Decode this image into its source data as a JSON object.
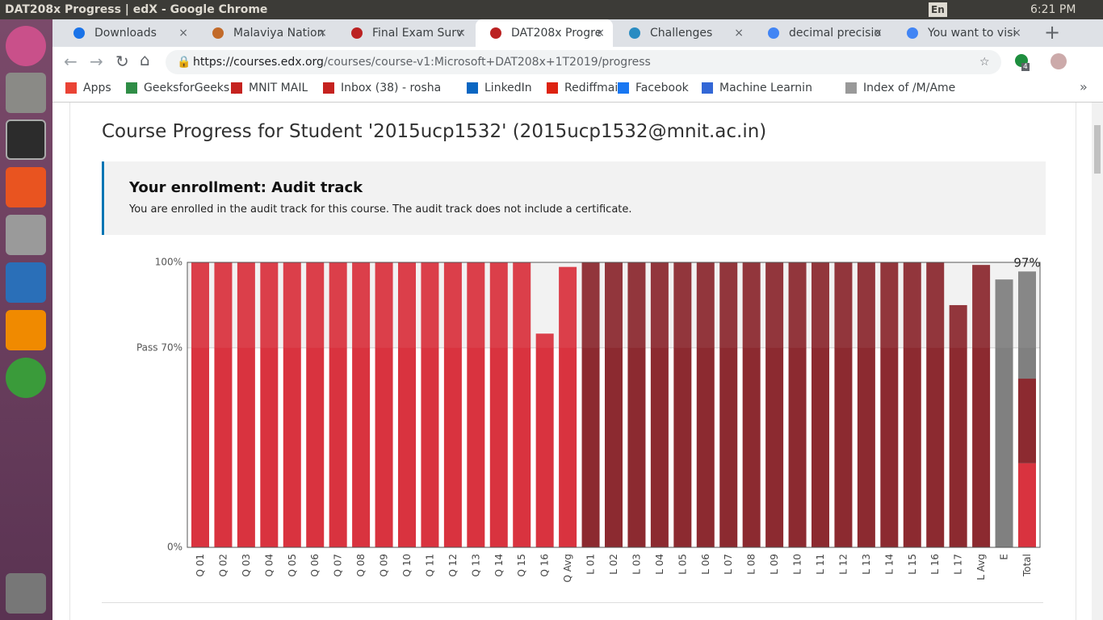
{
  "window_title": "DAT208x Progress | edX - Google Chrome",
  "tray": {
    "keyboard": "En",
    "time": "6:21 PM"
  },
  "tabs": [
    "Downloads",
    "Malaviya Nation",
    "Final Exam Surv",
    "DAT208x Progre",
    "Challenges",
    "decimal precisio",
    "You want to visi"
  ],
  "url": {
    "host": "https://courses.edx.org",
    "path": "/courses/course-v1:Microsoft+DAT208x+1T2019/progress"
  },
  "extension_badge": "4",
  "bookmarks": [
    "Apps",
    "GeeksforGeeks |",
    "MNIT MAIL",
    "Inbox (38) - rosha",
    "LinkedIn",
    "Rediffmail",
    "Facebook",
    "Machine Learnin",
    "Index of /M/Ame"
  ],
  "page": {
    "heading": "Course Progress for Student '2015ucp1532' (2015ucp1532@mnit.ac.in)",
    "enrollment": {
      "title": "Your enrollment: Audit track",
      "text": "You are enrolled in the audit track for this course. The audit track does not include a certificate."
    }
  },
  "chart_data": {
    "type": "bar",
    "categories": [
      "Q 01",
      "Q 02",
      "Q 03",
      "Q 04",
      "Q 05",
      "Q 06",
      "Q 07",
      "Q 08",
      "Q 09",
      "Q 10",
      "Q 11",
      "Q 12",
      "Q 13",
      "Q 14",
      "Q 15",
      "Q 16",
      "Q Avg",
      "L 01",
      "L 02",
      "L 03",
      "L 04",
      "L 05",
      "L 06",
      "L 07",
      "L 08",
      "L 09",
      "L 10",
      "L 11",
      "L 12",
      "L 13",
      "L 14",
      "L 15",
      "L 16",
      "L 17",
      "L Avg",
      "E"
    ],
    "values": [
      100,
      100,
      100,
      100,
      100,
      100,
      100,
      100,
      100,
      100,
      100,
      100,
      100,
      100,
      100,
      75,
      98.4,
      100,
      100,
      100,
      100,
      100,
      100,
      100,
      100,
      100,
      100,
      100,
      100,
      100,
      100,
      100,
      100,
      85,
      99.1,
      94
    ],
    "colors": [
      "#d9333f",
      "#d9333f",
      "#d9333f",
      "#d9333f",
      "#d9333f",
      "#d9333f",
      "#d9333f",
      "#d9333f",
      "#d9333f",
      "#d9333f",
      "#d9333f",
      "#d9333f",
      "#d9333f",
      "#d9333f",
      "#d9333f",
      "#d9333f",
      "#d9333f",
      "#8c2a30",
      "#8c2a30",
      "#8c2a30",
      "#8c2a30",
      "#8c2a30",
      "#8c2a30",
      "#8c2a30",
      "#8c2a30",
      "#8c2a30",
      "#8c2a30",
      "#8c2a30",
      "#8c2a30",
      "#8c2a30",
      "#8c2a30",
      "#8c2a30",
      "#8c2a30",
      "#8c2a30",
      "#8c2a30",
      "#808080"
    ],
    "total": {
      "category": "Total",
      "segments": [
        29.5,
        29.7,
        37.6
      ],
      "colors": [
        "#d9333f",
        "#8c2a30",
        "#808080"
      ],
      "label": "97%"
    },
    "ylim": [
      0,
      100
    ],
    "yticks": [
      {
        "value": 0,
        "label": "0%"
      },
      {
        "value": 70,
        "label": "Pass 70%"
      },
      {
        "value": 100,
        "label": "100%"
      }
    ],
    "pass_band": true
  }
}
